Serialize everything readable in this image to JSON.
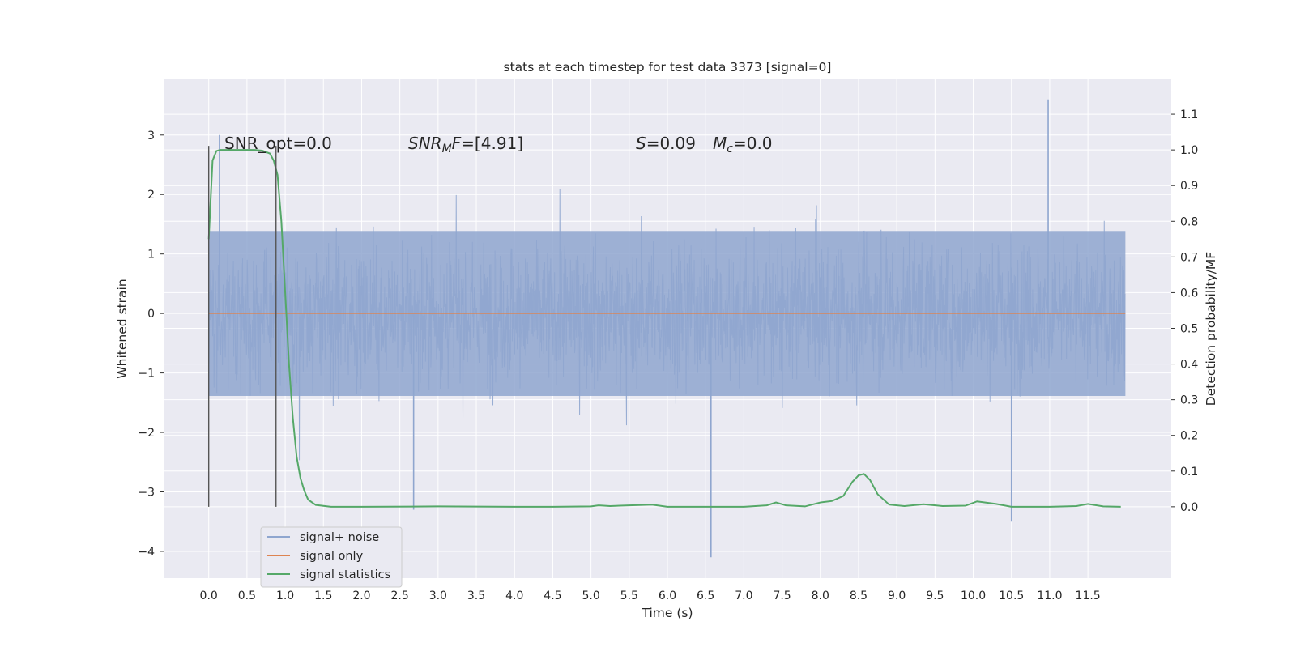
{
  "chart_data": {
    "type": "line",
    "title": "stats at each timestep for test data 3373 [signal=0]",
    "xlabel": "Time (s)",
    "ylabel_left": "Whitened strain",
    "ylabel_right": "Detection probability/MF",
    "x_ticks": [
      "0.0",
      "0.5",
      "1.0",
      "1.5",
      "2.0",
      "2.5",
      "3.0",
      "3.5",
      "4.0",
      "4.5",
      "5.0",
      "5.5",
      "6.0",
      "6.5",
      "7.0",
      "7.5",
      "8.0",
      "8.5",
      "9.0",
      "9.5",
      "10.0",
      "10.5",
      "11.0",
      "11.5"
    ],
    "y_left_ticks": [
      "3",
      "2",
      "1",
      "0",
      "−1",
      "−2",
      "−3",
      "−4"
    ],
    "y_right_ticks": [
      "1.1",
      "1.0",
      "0.9",
      "0.8",
      "0.7",
      "0.6",
      "0.5",
      "0.4",
      "0.3",
      "0.2",
      "0.1",
      "0.0"
    ],
    "xlim": [
      -0.59,
      12.59
    ],
    "ylim_left": [
      -4.45,
      3.95
    ],
    "ylim_right": [
      -0.2,
      1.2
    ],
    "grid": true,
    "legend_position": "lower-left",
    "annotations": {
      "snr_opt": "SNR_opt=0.0",
      "snr_mf_label": "SNR",
      "snr_mf_sub": "M",
      "snr_mf_tail": "F=[4.91]",
      "s_label": "S",
      "s_value": "=0.09",
      "mc_label": "M",
      "mc_sub": "c",
      "mc_value": "=0.0"
    },
    "vertical_markers_x": [
      0.0,
      0.88
    ],
    "series": [
      {
        "name": "signal+ noise",
        "color": "#8fa6cf",
        "x_range": [
          0.0,
          11.99
        ],
        "typical_band": [
          -1.55,
          1.55
        ],
        "peak_spikes": [
          [
            0.14,
            3.0
          ],
          [
            2.68,
            -3.3
          ],
          [
            6.57,
            -4.1
          ],
          [
            10.98,
            3.6
          ],
          [
            10.5,
            -3.5
          ]
        ]
      },
      {
        "name": "signal only",
        "color": "#dd8452",
        "x": [
          0.0,
          11.99
        ],
        "values": [
          0.0,
          0.0
        ]
      },
      {
        "name": "signal statistics",
        "color": "#55a868",
        "axis": "right",
        "x": [
          0.0,
          0.05,
          0.1,
          0.15,
          0.2,
          0.3,
          0.45,
          0.6,
          0.7,
          0.8,
          0.85,
          0.9,
          0.95,
          1.0,
          1.05,
          1.1,
          1.15,
          1.2,
          1.25,
          1.3,
          1.4,
          1.6,
          2.0,
          3.0,
          4.0,
          4.5,
          5.0,
          5.1,
          5.25,
          5.5,
          5.8,
          6.0,
          6.5,
          7.0,
          7.3,
          7.42,
          7.55,
          7.8,
          8.0,
          8.15,
          8.3,
          8.42,
          8.5,
          8.57,
          8.65,
          8.75,
          8.9,
          9.1,
          9.35,
          9.6,
          9.9,
          10.05,
          10.3,
          10.5,
          11.0,
          11.35,
          11.5,
          11.7,
          11.93
        ],
        "values": [
          0.75,
          0.97,
          0.997,
          1.0,
          1.0,
          1.0,
          1.0,
          1.0,
          0.998,
          0.99,
          0.97,
          0.93,
          0.8,
          0.6,
          0.4,
          0.25,
          0.14,
          0.08,
          0.045,
          0.02,
          0.005,
          0.0,
          0.0,
          0.001,
          0.0,
          0.0,
          0.001,
          0.004,
          0.002,
          0.004,
          0.006,
          0.0,
          0.0,
          0.0,
          0.004,
          0.012,
          0.004,
          0.001,
          0.012,
          0.016,
          0.03,
          0.07,
          0.088,
          0.092,
          0.075,
          0.035,
          0.006,
          0.002,
          0.007,
          0.002,
          0.003,
          0.015,
          0.008,
          0.0,
          0.0,
          0.002,
          0.008,
          0.001,
          0.0
        ]
      }
    ]
  }
}
